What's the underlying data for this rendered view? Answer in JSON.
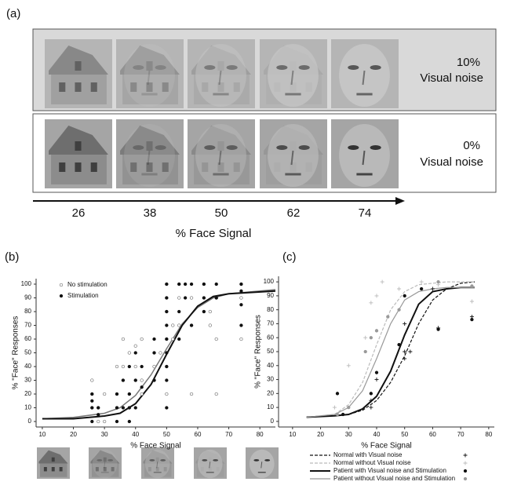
{
  "panel_a": {
    "label": "(a)",
    "rows": [
      {
        "noise": "10%",
        "text": "Visual noise"
      },
      {
        "noise": "0%",
        "text": "Visual noise"
      }
    ],
    "x_labels": [
      26,
      38,
      50,
      62,
      74
    ],
    "axis_label": "% Face Signal"
  },
  "chart_data": [
    {
      "type": "scatter",
      "label": "(b)",
      "x_label": "% Face Signal",
      "y_label": "% \"Face\" Responses",
      "xlim": [
        8,
        85
      ],
      "ylim": [
        -4,
        104
      ],
      "xticks": [
        10,
        20,
        30,
        40,
        50,
        60,
        70,
        80
      ],
      "yticks": [
        0,
        10,
        20,
        30,
        40,
        50,
        60,
        70,
        80,
        90,
        100
      ],
      "legend": "upper left",
      "series": [
        {
          "name": "No stimulation",
          "color": "#777777",
          "marker": "open",
          "line_style": "solid",
          "line_width": 1.5,
          "x": [
            26,
            26,
            26,
            28,
            28,
            30,
            30,
            34,
            34,
            34,
            36,
            36,
            36,
            38,
            38,
            38,
            40,
            40,
            40,
            42,
            42,
            42,
            46,
            46,
            46,
            48,
            50,
            50,
            50,
            50,
            50,
            50,
            52,
            52,
            54,
            54,
            54,
            58,
            58,
            58,
            62,
            62,
            62,
            64,
            64,
            66,
            66,
            66,
            74,
            74,
            74
          ],
          "values": [
            30,
            20,
            10,
            0,
            10,
            20,
            0,
            40,
            20,
            10,
            40,
            60,
            30,
            50,
            20,
            10,
            40,
            30,
            55,
            60,
            30,
            20,
            50,
            40,
            30,
            50,
            100,
            90,
            80,
            60,
            40,
            20,
            70,
            60,
            100,
            90,
            70,
            90,
            70,
            20,
            90,
            80,
            100,
            70,
            80,
            60,
            20,
            90,
            100,
            90,
            60
          ],
          "curve": {
            "x": [
              10,
              20,
              30,
              35,
              40,
              45,
              50,
              55,
              60,
              65,
              70,
              85
            ],
            "values": [
              2,
              3,
              6,
              10,
              19,
              34,
              53,
              71,
              83,
              90,
              93,
              96
            ]
          }
        },
        {
          "name": "Stimulation",
          "color": "#111111",
          "marker": "filled",
          "line_style": "solid",
          "line_width": 2,
          "x": [
            26,
            26,
            26,
            26,
            28,
            28,
            34,
            34,
            34,
            36,
            36,
            38,
            38,
            38,
            38,
            40,
            40,
            40,
            42,
            42,
            46,
            46,
            46,
            50,
            50,
            50,
            50,
            50,
            50,
            50,
            50,
            50,
            54,
            54,
            54,
            56,
            56,
            58,
            58,
            62,
            62,
            62,
            66,
            66,
            74,
            74,
            74,
            74
          ],
          "values": [
            20,
            10,
            0,
            15,
            10,
            5,
            20,
            10,
            0,
            30,
            10,
            40,
            20,
            10,
            0,
            50,
            30,
            10,
            40,
            25,
            60,
            50,
            30,
            100,
            90,
            80,
            70,
            60,
            50,
            40,
            30,
            10,
            100,
            80,
            60,
            100,
            90,
            100,
            70,
            100,
            90,
            80,
            100,
            90,
            100,
            95,
            85,
            70
          ],
          "curve": {
            "x": [
              10,
              20,
              30,
              35,
              40,
              45,
              50,
              55,
              60,
              65,
              70,
              85
            ],
            "values": [
              2,
              2,
              4,
              6,
              13,
              27,
              49,
              70,
              84,
              91,
              93,
              95
            ]
          }
        }
      ]
    },
    {
      "type": "scatter",
      "label": "(c)",
      "x_label": "% Face Signal",
      "y_label": "% \"Face\" Responses",
      "xlim": [
        5,
        82
      ],
      "ylim": [
        -4,
        104
      ],
      "xticks": [
        10,
        20,
        30,
        40,
        50,
        60,
        70,
        80
      ],
      "yticks": [
        0,
        10,
        20,
        30,
        40,
        50,
        60,
        70,
        80,
        90,
        100
      ],
      "legend": "below",
      "series": [
        {
          "name": "Normal with Visual noise",
          "color": "#111111",
          "marker": "plus",
          "line_style": "dashed",
          "line_width": 1.2,
          "x": [
            38,
            40,
            38,
            50,
            50,
            50,
            52,
            60,
            62,
            74
          ],
          "values": [
            15,
            30,
            10,
            50,
            45,
            70,
            50,
            95,
            67,
            75
          ],
          "curve": {
            "x": [
              15,
              25,
              30,
              35,
              40,
              45,
              50,
              55,
              60,
              65,
              70,
              75
            ],
            "values": [
              3,
              4,
              5,
              8,
              15,
              28,
              47,
              70,
              87,
              95,
              99,
              100
            ]
          }
        },
        {
          "name": "Normal without Visual noise",
          "color": "#bbbbbb",
          "marker": "plus",
          "line_style": "dashed",
          "line_width": 1.2,
          "x": [
            25,
            30,
            36,
            38,
            40,
            42,
            48,
            56,
            62,
            74
          ],
          "values": [
            10,
            40,
            60,
            85,
            90,
            100,
            95,
            100,
            98,
            86
          ],
          "curve": {
            "x": [
              15,
              25,
              30,
              35,
              40,
              45,
              50,
              55,
              60,
              65,
              70,
              75
            ],
            "values": [
              3,
              5,
              12,
              28,
              55,
              80,
              93,
              98,
              99,
              100,
              100,
              100
            ]
          }
        },
        {
          "name": "Patient with Visual noise and Stimulation",
          "color": "#111111",
          "marker": "filled",
          "line_style": "solid",
          "line_width": 2,
          "x": [
            26,
            28,
            38,
            40,
            48,
            50,
            56,
            62,
            74
          ],
          "values": [
            20,
            5,
            20,
            35,
            55,
            90,
            95,
            66,
            73
          ],
          "curve": {
            "x": [
              15,
              25,
              30,
              35,
              40,
              45,
              50,
              55,
              60,
              65,
              70,
              75
            ],
            "values": [
              3,
              4,
              5,
              9,
              18,
              36,
              62,
              84,
              93,
              95,
              96,
              96
            ]
          }
        },
        {
          "name": "Patient without Visual noise and Stimulation",
          "color": "#999999",
          "marker": "filled",
          "line_style": "solid",
          "line_width": 1.2,
          "x": [
            26,
            30,
            36,
            38,
            40,
            44,
            48,
            62,
            74
          ],
          "values": [
            5,
            10,
            50,
            60,
            65,
            75,
            80,
            100,
            97
          ],
          "curve": {
            "x": [
              15,
              25,
              30,
              35,
              40,
              45,
              50,
              55,
              60,
              65,
              70,
              75
            ],
            "values": [
              3,
              5,
              10,
              22,
              45,
              70,
              87,
              93,
              95,
              96,
              96,
              96
            ]
          }
        }
      ]
    }
  ]
}
